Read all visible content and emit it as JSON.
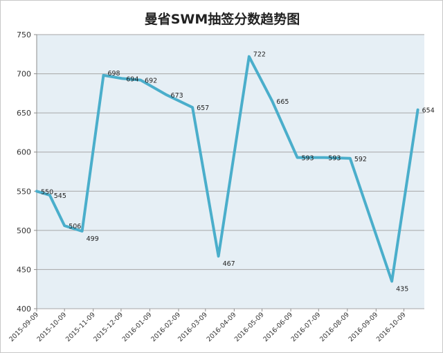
{
  "chart_data": {
    "type": "line",
    "title": "曼省SWM抽签分数趋势图",
    "xlabel": "",
    "ylabel": "",
    "ylim": [
      400,
      750
    ],
    "yticks": [
      400,
      450,
      500,
      550,
      600,
      650,
      700,
      750
    ],
    "grid": true,
    "legend": "none",
    "x_ticks": [
      "2015-09-09",
      "2015-10-09",
      "2015-11-09",
      "2015-12-09",
      "2016-01-09",
      "2016-02-09",
      "2016-03-09",
      "2016-04-09",
      "2016-05-09",
      "2016-06-09",
      "2016-07-09",
      "2016-08-09",
      "2016-09-09",
      "2016-10-09"
    ],
    "x_range": [
      "2015-09-09",
      "2016-10-31"
    ],
    "points": [
      {
        "date": "2015-09-09",
        "value": 550
      },
      {
        "date": "2015-09-23",
        "value": 545
      },
      {
        "date": "2015-10-09",
        "value": 506
      },
      {
        "date": "2015-10-28",
        "value": 499
      },
      {
        "date": "2015-11-20",
        "value": 698
      },
      {
        "date": "2015-12-10",
        "value": 694
      },
      {
        "date": "2015-12-30",
        "value": 692
      },
      {
        "date": "2016-01-27",
        "value": 673
      },
      {
        "date": "2016-02-24",
        "value": 657
      },
      {
        "date": "2016-03-23",
        "value": 467
      },
      {
        "date": "2016-04-25",
        "value": 722
      },
      {
        "date": "2016-05-20",
        "value": 665
      },
      {
        "date": "2016-06-16",
        "value": 593
      },
      {
        "date": "2016-07-15",
        "value": 593
      },
      {
        "date": "2016-08-12",
        "value": 592
      },
      {
        "date": "2016-09-26",
        "value": 435
      },
      {
        "date": "2016-10-24",
        "value": 654
      }
    ],
    "colors": {
      "line": "#4aaecb",
      "plot_background": "#e6eff5",
      "grid": "#a6a6a6"
    }
  }
}
